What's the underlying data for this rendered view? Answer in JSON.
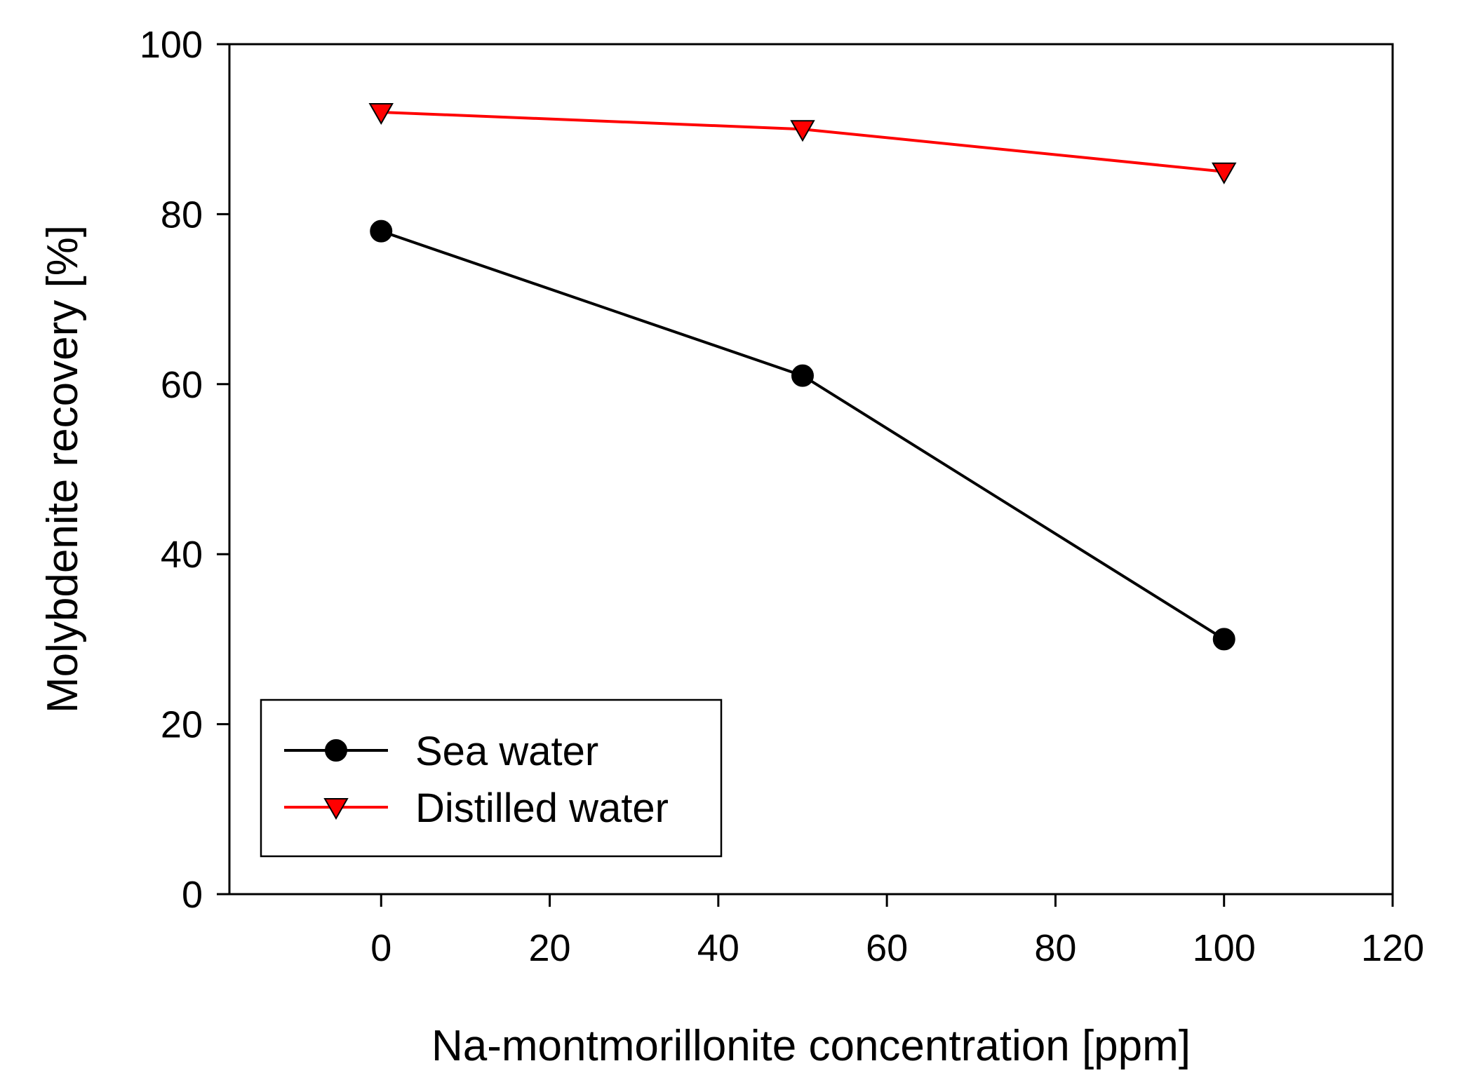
{
  "chart_data": {
    "type": "line",
    "title": "",
    "xlabel": "Na-montmorillonite concentration [ppm]",
    "ylabel": "Molybdenite recovery [%]",
    "xlim": [
      -18,
      120
    ],
    "ylim": [
      0,
      100
    ],
    "xticks": [
      0,
      20,
      40,
      60,
      80,
      100,
      120
    ],
    "yticks": [
      0,
      20,
      40,
      60,
      80,
      100
    ],
    "grid": false,
    "legend_position": "bottom-left",
    "series": [
      {
        "name": "Sea water",
        "x": [
          0,
          50,
          100
        ],
        "values": [
          78,
          61,
          30
        ],
        "color": "#000000",
        "marker": "circle",
        "marker_fill": "#000000"
      },
      {
        "name": "Distilled water",
        "x": [
          0,
          50,
          100
        ],
        "values": [
          92,
          90,
          85
        ],
        "color": "#ff0000",
        "marker": "triangle-down",
        "marker_fill": "#ff0000"
      }
    ]
  }
}
